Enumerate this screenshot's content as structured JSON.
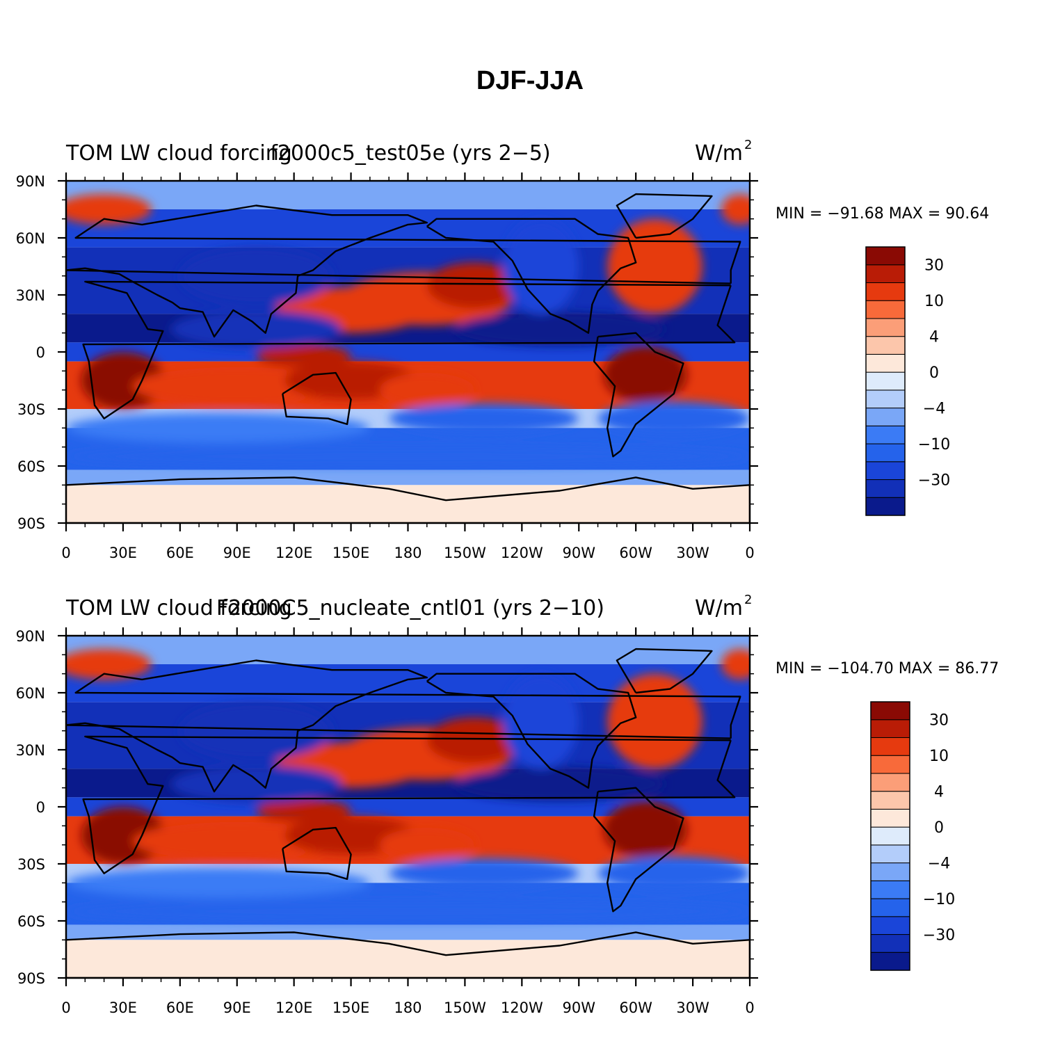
{
  "title": "DJF-JJA",
  "x_ticks": [
    "0",
    "30E",
    "60E",
    "90E",
    "120E",
    "150E",
    "180",
    "150W",
    "120W",
    "90W",
    "60W",
    "30W",
    "0"
  ],
  "y_ticks": [
    "90N",
    "60N",
    "30N",
    "0",
    "30S",
    "60S",
    "90S"
  ],
  "colorbar": {
    "colors": [
      "#0a1a8c",
      "#1230b8",
      "#1a45d9",
      "#2563eb",
      "#3b7bf5",
      "#7aa7f7",
      "#b3cdfa",
      "#deebfb",
      "#fde8da",
      "#fcc6ab",
      "#fb9e78",
      "#f86a3a",
      "#e63a0f",
      "#b91c06",
      "#8a0a04"
    ],
    "labels": [
      "-30",
      "-10",
      "-4",
      "0",
      "4",
      "10",
      "30"
    ]
  },
  "panels": [
    {
      "left_label": "TOM LW cloud forcing",
      "center_label": "f2000c5_test05e (yrs 2-5)",
      "units": "W/m",
      "units_sup": "2",
      "stats": "MIN = -91.68 MAX =  90.64"
    },
    {
      "left_label": "TOM LW cloud forcing",
      "center_label": "F2000C5_nucleate_cntl01 (yrs 2-10)",
      "units": "W/m",
      "units_sup": "2",
      "stats": "MIN = -104.70 MAX =  86.77"
    }
  ]
}
